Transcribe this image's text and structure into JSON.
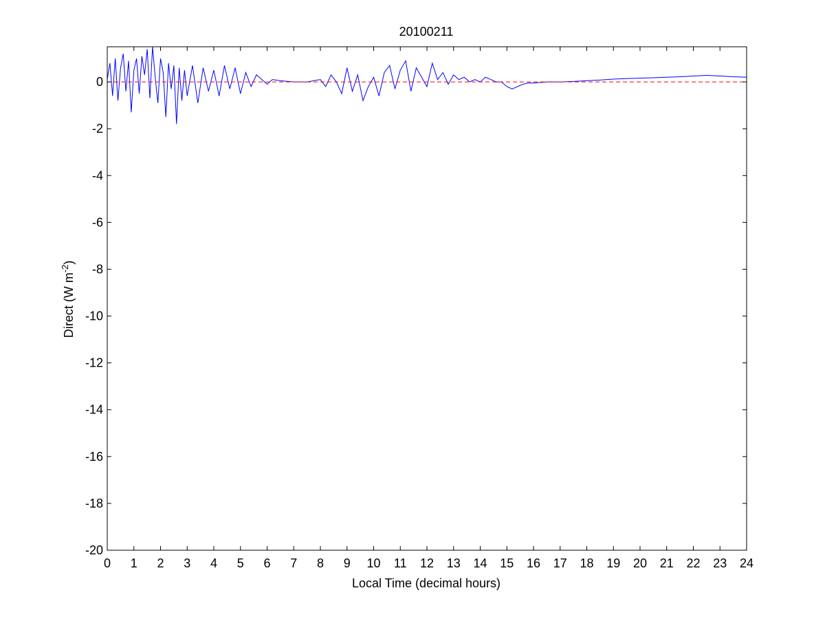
{
  "chart_data": {
    "type": "line",
    "title": "20100211",
    "xlabel": "Local Time (decimal hours)",
    "ylabel": {
      "prefix": "Direct (W m",
      "superscript": "-2",
      "suffix": ")"
    },
    "xlim": [
      0,
      24
    ],
    "ylim": [
      -20,
      1.5
    ],
    "x_ticks": [
      0,
      1,
      2,
      3,
      4,
      5,
      6,
      7,
      8,
      9,
      10,
      11,
      12,
      13,
      14,
      15,
      16,
      17,
      18,
      19,
      20,
      21,
      22,
      23,
      24
    ],
    "y_ticks": [
      0,
      -2,
      -4,
      -6,
      -8,
      -10,
      -12,
      -14,
      -16,
      -18,
      -20
    ],
    "grid": false,
    "legend": "none",
    "series": [
      {
        "style": "solid",
        "color": "#0000ff",
        "x": [
          0,
          0.1,
          0.2,
          0.3,
          0.4,
          0.5,
          0.6,
          0.7,
          0.8,
          0.9,
          1.0,
          1.1,
          1.2,
          1.3,
          1.4,
          1.5,
          1.6,
          1.7,
          1.8,
          1.9,
          2.0,
          2.1,
          2.2,
          2.3,
          2.4,
          2.5,
          2.6,
          2.7,
          2.8,
          2.9,
          3.0,
          3.2,
          3.4,
          3.6,
          3.8,
          4.0,
          4.2,
          4.4,
          4.6,
          4.8,
          5.0,
          5.2,
          5.4,
          5.6,
          5.8,
          6.0,
          6.2,
          6.5,
          7.0,
          7.5,
          8.0,
          8.2,
          8.4,
          8.6,
          8.8,
          9.0,
          9.2,
          9.4,
          9.6,
          9.8,
          10.0,
          10.2,
          10.4,
          10.6,
          10.8,
          11.0,
          11.2,
          11.4,
          11.6,
          11.8,
          12.0,
          12.2,
          12.4,
          12.6,
          12.8,
          13.0,
          13.2,
          13.4,
          13.6,
          13.8,
          14.0,
          14.2,
          14.4,
          14.6,
          14.8,
          15.0,
          15.2,
          15.4,
          15.6,
          15.8,
          16.0,
          16.5,
          17.0,
          17.5,
          18.0,
          18.5,
          19.0,
          19.5,
          20.0,
          20.5,
          21.0,
          21.5,
          22.0,
          22.5,
          23.0,
          23.5,
          24.0
        ],
        "y": [
          0.1,
          0.8,
          -0.6,
          1.0,
          -0.8,
          0.6,
          1.2,
          -0.4,
          0.9,
          -1.3,
          0.5,
          1.0,
          -0.5,
          1.1,
          0.3,
          1.4,
          -0.7,
          1.5,
          0.2,
          -0.9,
          1.0,
          0.4,
          -1.5,
          0.8,
          -0.3,
          0.7,
          -1.8,
          0.6,
          -0.8,
          0.5,
          -0.6,
          0.7,
          -0.9,
          0.6,
          -0.4,
          0.5,
          -0.6,
          0.7,
          -0.3,
          0.6,
          -0.5,
          0.4,
          -0.2,
          0.3,
          0.1,
          -0.1,
          0.1,
          0.05,
          0.0,
          0.0,
          0.1,
          -0.2,
          0.3,
          0.0,
          -0.5,
          0.6,
          -0.4,
          0.3,
          -0.8,
          -0.2,
          0.2,
          -0.6,
          0.4,
          0.7,
          -0.3,
          0.5,
          0.9,
          -0.4,
          0.6,
          0.2,
          -0.2,
          0.8,
          0.1,
          0.4,
          -0.1,
          0.3,
          0.1,
          0.2,
          0.0,
          0.1,
          0.0,
          0.2,
          0.1,
          0.0,
          0.0,
          -0.2,
          -0.3,
          -0.2,
          -0.1,
          -0.05,
          -0.05,
          0.0,
          0.0,
          0.02,
          0.05,
          0.08,
          0.12,
          0.14,
          0.16,
          0.18,
          0.2,
          0.22,
          0.25,
          0.28,
          0.25,
          0.22,
          0.2
        ]
      },
      {
        "style": "dashed",
        "color": "#ff0000",
        "x": [
          0,
          24
        ],
        "y": [
          0,
          0
        ]
      }
    ]
  }
}
